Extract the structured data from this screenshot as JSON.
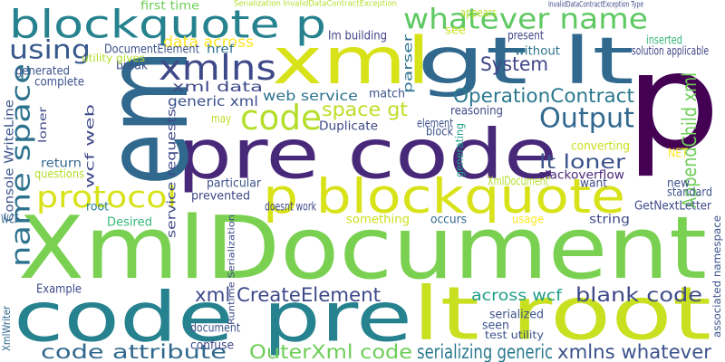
{
  "colors": {
    "background": "#ffffff",
    "palette": [
      "#440154",
      "#482878",
      "#3e4989",
      "#31688e",
      "#26828e",
      "#1f9e89",
      "#35b779",
      "#6ece58",
      "#b5de2b",
      "#fde725"
    ]
  },
  "words": [
    {
      "text": "XmlDocument",
      "color": "#7ad151"
    },
    {
      "text": "pre code",
      "color": "#482878"
    },
    {
      "text": "em",
      "color": "#31688e"
    },
    {
      "text": "code pre",
      "color": "#26828e"
    },
    {
      "text": "lt root",
      "color": "#c8e020"
    },
    {
      "text": "p",
      "color": "#440154"
    },
    {
      "text": "xml",
      "color": "#d8e219"
    },
    {
      "text": "gt lt",
      "color": "#31688e"
    },
    {
      "text": "blockquote p",
      "color": "#26828e"
    },
    {
      "text": "p blockquote",
      "color": "#d8e219"
    },
    {
      "text": "whatever name",
      "color": "#5ec962"
    },
    {
      "text": "code",
      "color": "#b5de2b"
    },
    {
      "text": "xmlns",
      "color": "#3e4989"
    },
    {
      "text": "using",
      "color": "#38598c"
    },
    {
      "text": "name space",
      "color": "#2c728e"
    },
    {
      "text": "protocol",
      "color": "#d8e219"
    },
    {
      "text": "Output",
      "color": "#31688e"
    },
    {
      "text": "OperationContract",
      "color": "#2a788e"
    },
    {
      "text": "System",
      "color": "#404688"
    },
    {
      "text": "space gt",
      "color": "#bddf26"
    },
    {
      "text": "lt loner",
      "color": "#3b528b"
    },
    {
      "text": "AppendChild xml",
      "color": "#6ece58"
    },
    {
      "text": "xml CreateElement",
      "color": "#3e4989"
    },
    {
      "text": "blank code",
      "color": "#3e4989"
    },
    {
      "text": "code attribute",
      "color": "#31688e"
    },
    {
      "text": "OuterXml code",
      "color": "#6ece58"
    },
    {
      "text": "serializing generic",
      "color": "#2a788e"
    },
    {
      "text": "xmlns whatever",
      "color": "#3b528b"
    },
    {
      "text": "across wcf",
      "color": "#1f9e89"
    },
    {
      "text": "data across",
      "color": "#fde725"
    },
    {
      "text": "web service",
      "color": "#2c728e"
    },
    {
      "text": "xml data",
      "color": "#3e4989"
    },
    {
      "text": "generic xml",
      "color": "#3b528b"
    },
    {
      "text": "service requests",
      "color": "#3e4989"
    },
    {
      "text": "wcf web",
      "color": "#3e4989"
    },
    {
      "text": "Console WriteLine",
      "color": "#3b528b"
    },
    {
      "text": "DocumentElement",
      "color": "#3b528b"
    },
    {
      "text": "href",
      "color": "#2c728e"
    },
    {
      "text": "first time",
      "color": "#6ece58"
    },
    {
      "text": "appears",
      "color": "#b5de2b"
    },
    {
      "text": "Im building",
      "color": "#433e85"
    },
    {
      "text": "parser",
      "color": "#2c728e"
    },
    {
      "text": "present",
      "color": "#404688"
    },
    {
      "text": "without",
      "color": "#2c728e"
    },
    {
      "text": "inserted",
      "color": "#35b779"
    },
    {
      "text": "solution applicable",
      "color": "#404688"
    },
    {
      "text": "see",
      "color": "#c8e020"
    },
    {
      "text": "break",
      "color": "#3b528b"
    },
    {
      "text": "generated",
      "color": "#3b528b"
    },
    {
      "text": "complete",
      "color": "#3b528b"
    },
    {
      "text": "utility gives",
      "color": "#b5de2b"
    },
    {
      "text": "loner",
      "color": "#3e4989"
    },
    {
      "text": "return",
      "color": "#31688e"
    },
    {
      "text": "questions",
      "color": "#b5de2b"
    },
    {
      "text": "WCF",
      "color": "#31688e"
    },
    {
      "text": "root",
      "color": "#26828e"
    },
    {
      "text": "Desired",
      "color": "#35b779"
    },
    {
      "text": "Example",
      "color": "#3e4989"
    },
    {
      "text": "XmlWriter",
      "color": "#31688e"
    },
    {
      "text": "match",
      "color": "#3b528b"
    },
    {
      "text": "reasoning",
      "color": "#3e4989"
    },
    {
      "text": "may",
      "color": "#bddf26"
    },
    {
      "text": "Duplicate",
      "color": "#3e4989"
    },
    {
      "text": "element",
      "color": "#3b528b"
    },
    {
      "text": "block",
      "color": "#3b528b"
    },
    {
      "text": "generating",
      "color": "#1f9e89"
    },
    {
      "text": "converting",
      "color": "#c8e020"
    },
    {
      "text": "stackoverflow",
      "color": "#482878"
    },
    {
      "text": "NET",
      "color": "#fde725"
    },
    {
      "text": "XmlDocument'",
      "color": "#b5de2b"
    },
    {
      "text": "want",
      "color": "#3e4989"
    },
    {
      "text": "new",
      "color": "#3b528b"
    },
    {
      "text": "standard",
      "color": "#3b528b"
    },
    {
      "text": "GetNextLetter",
      "color": "#3e4989"
    },
    {
      "text": "string",
      "color": "#3e4989"
    },
    {
      "text": "particular",
      "color": "#3b528b"
    },
    {
      "text": "prevented",
      "color": "#3e4989"
    },
    {
      "text": "doesnt work",
      "color": "#3e4989"
    },
    {
      "text": "something",
      "color": "#c8e020"
    },
    {
      "text": "occurs",
      "color": "#31688e"
    },
    {
      "text": "usage",
      "color": "#fde725"
    },
    {
      "text": "associated namespace",
      "color": "#3b528b"
    },
    {
      "text": "Runtime Serialization",
      "color": "#3e4989"
    },
    {
      "text": "Serialization InvalidDataContractException",
      "color": "#b5de2b"
    },
    {
      "text": "InvalidDataContractException Type",
      "color": "#3e4989"
    },
    {
      "text": "document",
      "color": "#3b528b"
    },
    {
      "text": "confuse",
      "color": "#3e4989"
    },
    {
      "text": "serialized",
      "color": "#3b528b"
    },
    {
      "text": "seen",
      "color": "#3b528b"
    },
    {
      "text": "test utility",
      "color": "#3b528b"
    }
  ]
}
